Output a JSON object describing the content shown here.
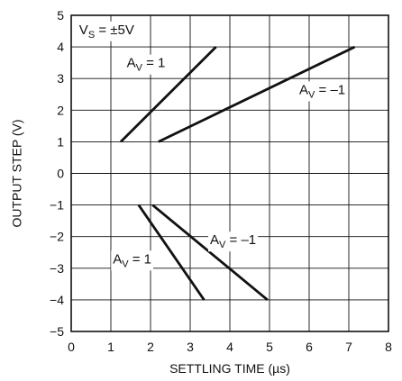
{
  "chart_data": {
    "type": "line",
    "xlabel": "SETTLING TIME (µs)",
    "ylabel": "OUTPUT STEP (V)",
    "xlim": [
      0,
      8
    ],
    "ylim": [
      -5,
      5
    ],
    "x_ticks": [
      0,
      1,
      2,
      3,
      4,
      5,
      6,
      7,
      8
    ],
    "y_ticks": [
      -5,
      -4,
      -3,
      -2,
      -1,
      0,
      1,
      2,
      3,
      4,
      5
    ],
    "x_tick_labels": [
      "0",
      "1",
      "2",
      "3",
      "4",
      "5",
      "6",
      "7",
      "8"
    ],
    "y_tick_labels": [
      "−5",
      "−4",
      "−3",
      "−2",
      "−1",
      "0",
      "1",
      "2",
      "3",
      "4",
      "5"
    ],
    "grid": true,
    "series": [
      {
        "points": [
          {
            "x": 1.25,
            "y": 1
          },
          {
            "x": 3.65,
            "y": 4
          }
        ]
      },
      {
        "points": [
          {
            "x": 2.2,
            "y": 1
          },
          {
            "x": 7.15,
            "y": 4
          }
        ]
      },
      {
        "points": [
          {
            "x": 1.7,
            "y": -1
          },
          {
            "x": 3.35,
            "y": -4
          }
        ]
      },
      {
        "points": [
          {
            "x": 2.05,
            "y": -1
          },
          {
            "x": 4.95,
            "y": -4
          }
        ]
      }
    ],
    "annotations": [
      {
        "main": "V",
        "sub": "S",
        "rest": " = ±5V",
        "x": 0.2,
        "y": 4.55
      },
      {
        "main": "A",
        "sub": "V",
        "rest": " = 1",
        "x": 1.4,
        "y": 3.5
      },
      {
        "main": "A",
        "sub": "V",
        "rest": " = –1",
        "x": 5.75,
        "y": 2.65
      },
      {
        "main": "A",
        "sub": "V",
        "rest": " = –1",
        "x": 3.5,
        "y": -2.1
      },
      {
        "main": "A",
        "sub": "V",
        "rest": " = 1",
        "x": 1.05,
        "y": -2.7
      }
    ],
    "colors": {
      "line": "#111111",
      "grid": "#111111",
      "background": "#ffffff"
    }
  }
}
